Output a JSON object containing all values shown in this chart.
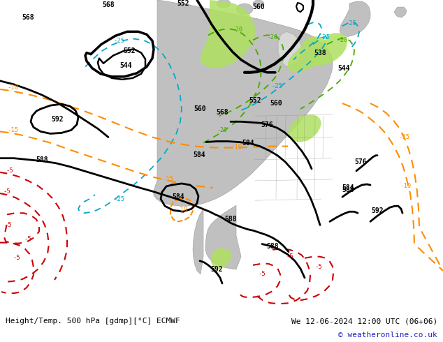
{
  "title_left": "Height/Temp. 500 hPa [gdmp][°C] ECMWF",
  "title_right": "We 12-06-2024 12:00 UTC (06+06)",
  "copyright": "© weatheronline.co.uk",
  "ocean_color": "#d8d8d8",
  "land_color": "#c0c0c0",
  "green_color": "#b0e060",
  "fig_width": 6.34,
  "fig_height": 4.9,
  "dpi": 100
}
